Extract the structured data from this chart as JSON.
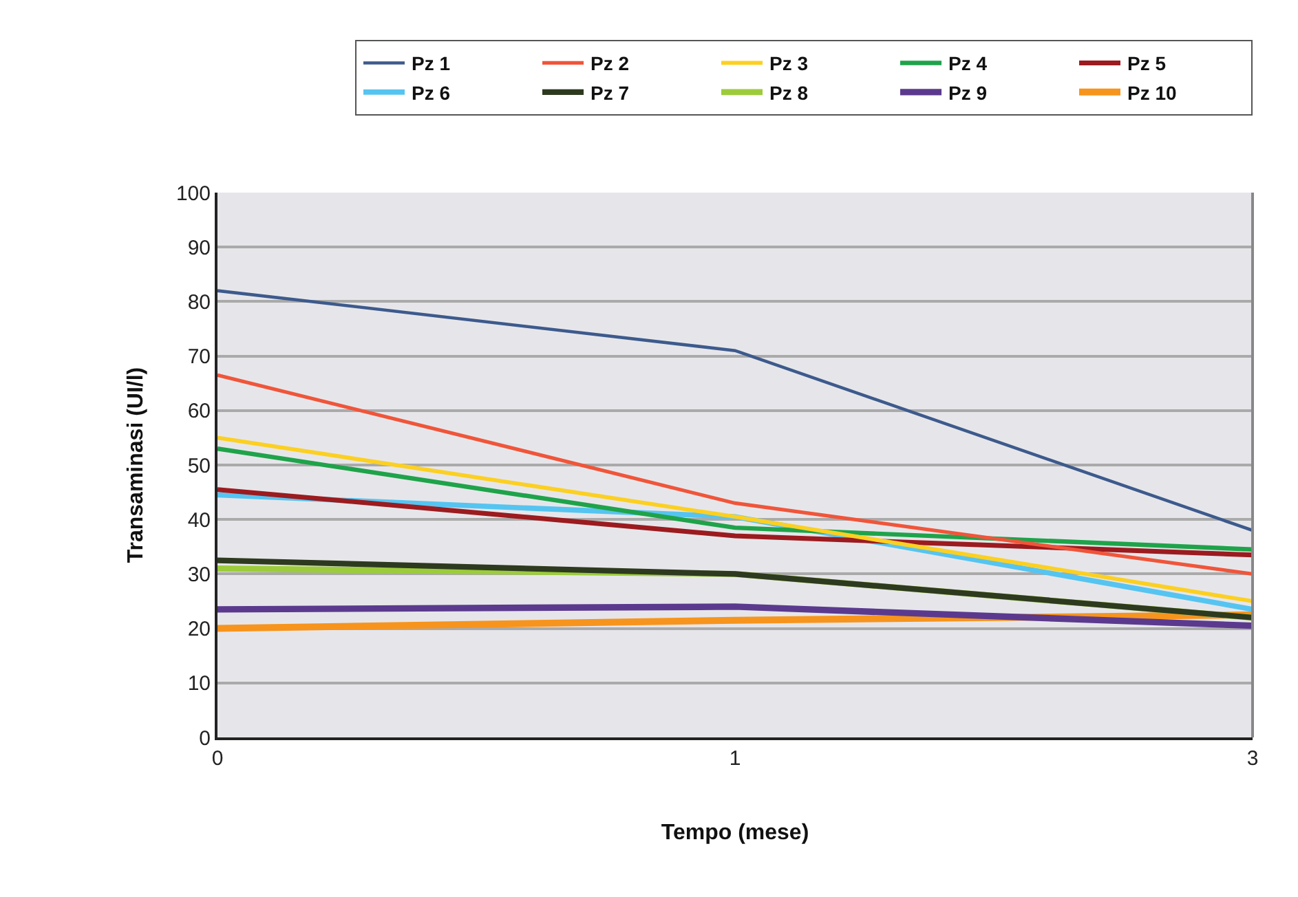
{
  "chart_data": {
    "type": "line",
    "xlabel": "Tempo (mese)",
    "ylabel": "Transaminasi (UI/l)",
    "categories": [
      "0",
      "1",
      "3"
    ],
    "series": [
      {
        "name": "Pz 1",
        "color": "#3d5a8c",
        "values": [
          82,
          71,
          38
        ]
      },
      {
        "name": "Pz 2",
        "color": "#f0553a",
        "values": [
          66.5,
          43,
          30
        ]
      },
      {
        "name": "Pz 3",
        "color": "#fcd022",
        "values": [
          55,
          40.5,
          25
        ]
      },
      {
        "name": "Pz 4",
        "color": "#1fa34a",
        "values": [
          53,
          38.5,
          34.5
        ]
      },
      {
        "name": "Pz 5",
        "color": "#9b1b1f",
        "values": [
          45.5,
          37,
          33.5
        ]
      },
      {
        "name": "Pz 6",
        "color": "#56c4f0",
        "values": [
          44.5,
          40.5,
          23.5
        ]
      },
      {
        "name": "Pz 7",
        "color": "#2e3a1f",
        "values": [
          32.5,
          30,
          22
        ]
      },
      {
        "name": "Pz 8",
        "color": "#9ccc3c",
        "values": [
          31,
          30,
          22
        ]
      },
      {
        "name": "Pz 9",
        "color": "#5b3a8e",
        "values": [
          23.5,
          24,
          20.5
        ]
      },
      {
        "name": "Pz 10",
        "color": "#f7941d",
        "values": [
          20,
          21.5,
          22.5
        ]
      }
    ],
    "ylim": [
      0,
      100
    ],
    "yticks": [
      0,
      10,
      20,
      30,
      40,
      50,
      60,
      70,
      80,
      90,
      100
    ],
    "grid": "y",
    "legend": "top right",
    "marker": "none",
    "line_style": "solid"
  }
}
